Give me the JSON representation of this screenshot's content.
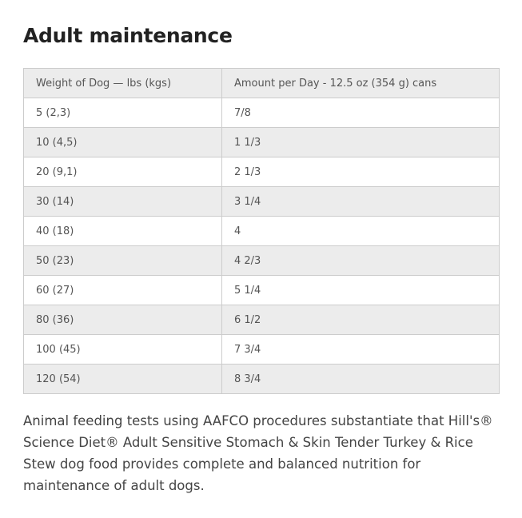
{
  "title": "Adult maintenance",
  "table": {
    "header": [
      "Weight of Dog — lbs (kgs)",
      "Amount per Day - 12.5 oz (354 g) cans"
    ],
    "rows": [
      [
        "5 (2,3)",
        "7/8"
      ],
      [
        "10 (4,5)",
        "1 1/3"
      ],
      [
        "20 (9,1)",
        "2 1/3"
      ],
      [
        "30 (14)",
        "3 1/4"
      ],
      [
        "40 (18)",
        "4"
      ],
      [
        "50 (23)",
        "4 2/3"
      ],
      [
        "60 (27)",
        "5 1/4"
      ],
      [
        "80 (36)",
        "6 1/2"
      ],
      [
        "100 (45)",
        "7 3/4"
      ],
      [
        "120 (54)",
        "8 3/4"
      ]
    ]
  },
  "paragraph": "Animal feeding tests using AAFCO procedures substantiate that Hill's® Science Diet® Adult Sensitive Stomach & Skin Tender Turkey & Rice Stew dog food provides complete and balanced nutrition for maintenance of adult dogs."
}
